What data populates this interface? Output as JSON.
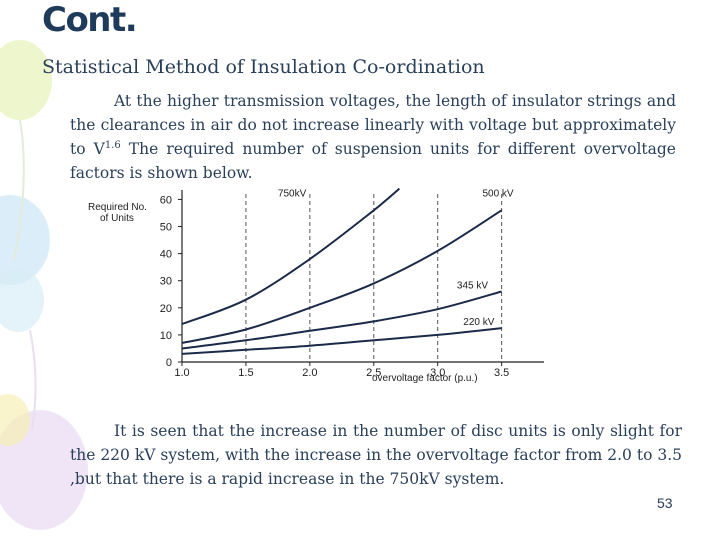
{
  "slide": {
    "title": "Cont.",
    "subtitle": "Statistical Method of Insulation Co-ordination",
    "para1_a": "At the higher transmission voltages, the length of insulator strings and the clearances in air do not increase linearly with voltage but approximately to V",
    "para1_sup": "1.6",
    "para1_b": " The required number of suspension units for different overvoltage factors is shown below.",
    "para2": "It is seen that the increase in the number of disc units is only slight for the 220 kV system, with the increase in the overvoltage factor from 2.0 to 3.5 ,but that there is a rapid increase in the 750kV system.",
    "page_number": "53"
  },
  "chart_data": {
    "type": "line",
    "ylabel_line1": "Required No.",
    "ylabel_line2": "of Units",
    "xlabel": "overvoltage factor (p.u.)",
    "x_ticks": [
      "1.0",
      "1.5",
      "2.0",
      "2.5",
      "3.0",
      "3.5"
    ],
    "y_ticks": [
      "0",
      "10",
      "20",
      "30",
      "40",
      "50",
      "60"
    ],
    "xlim": [
      1.0,
      3.8
    ],
    "ylim": [
      0,
      62
    ],
    "grid": "dashed vertical lines at x ticks",
    "series": [
      {
        "name": "220 kV",
        "x": [
          1.0,
          1.5,
          2.0,
          2.5,
          3.0,
          3.5
        ],
        "y": [
          3,
          4.5,
          6,
          8,
          10,
          12.5
        ]
      },
      {
        "name": "345 kV",
        "x": [
          1.0,
          1.5,
          2.0,
          2.5,
          3.0,
          3.5
        ],
        "y": [
          5,
          8,
          11.5,
          15,
          19.5,
          26
        ]
      },
      {
        "name": "500 kV",
        "x": [
          1.0,
          1.5,
          2.0,
          2.5,
          3.0,
          3.5
        ],
        "y": [
          7,
          12,
          20,
          29,
          41,
          56
        ]
      },
      {
        "name": "750kV",
        "x": [
          1.0,
          1.5,
          2.0,
          2.5,
          2.7
        ],
        "y": [
          14,
          23,
          38,
          56,
          64
        ]
      }
    ]
  }
}
